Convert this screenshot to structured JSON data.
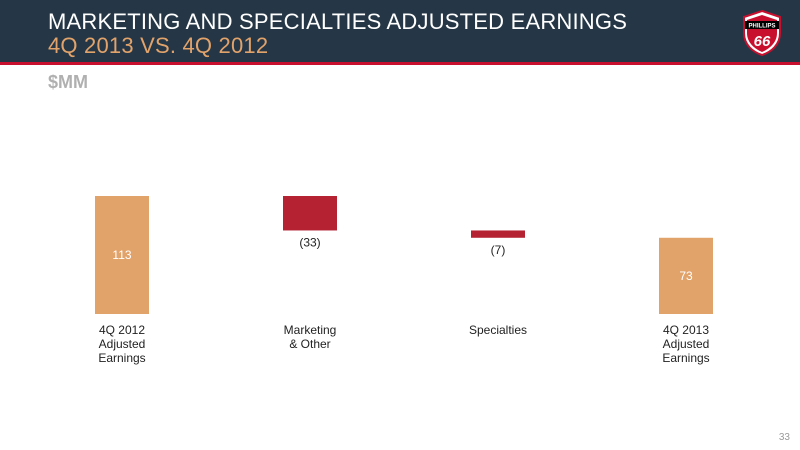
{
  "header": {
    "title": "MARKETING AND SPECIALTIES ADJUSTED EARNINGS",
    "subtitle": "4Q 2013 VS. 4Q 2012"
  },
  "logo": {
    "icon": "phillips-66-shield-icon",
    "brand_top": "PHILLIPS",
    "brand_number": "66"
  },
  "colors": {
    "header_bg": "#253746",
    "accent_red": "#c8102e",
    "total_bar": "#e2a36b",
    "decrease_bar": "#b52231"
  },
  "chart_data": {
    "type": "waterfall",
    "unit": "$MM",
    "ylim": [
      0,
      113
    ],
    "categories": [
      "4Q 2012\nAdjusted\nEarnings",
      "Marketing\n& Other",
      "Specialties",
      "4Q 2013\nAdjusted\nEarnings"
    ],
    "values": [
      113,
      -33,
      -7,
      73
    ],
    "kinds": [
      "total",
      "delta",
      "delta",
      "total"
    ],
    "data_labels": [
      "113",
      "(33)",
      "(7)",
      "73"
    ]
  },
  "footer": {
    "page_number": "33"
  }
}
